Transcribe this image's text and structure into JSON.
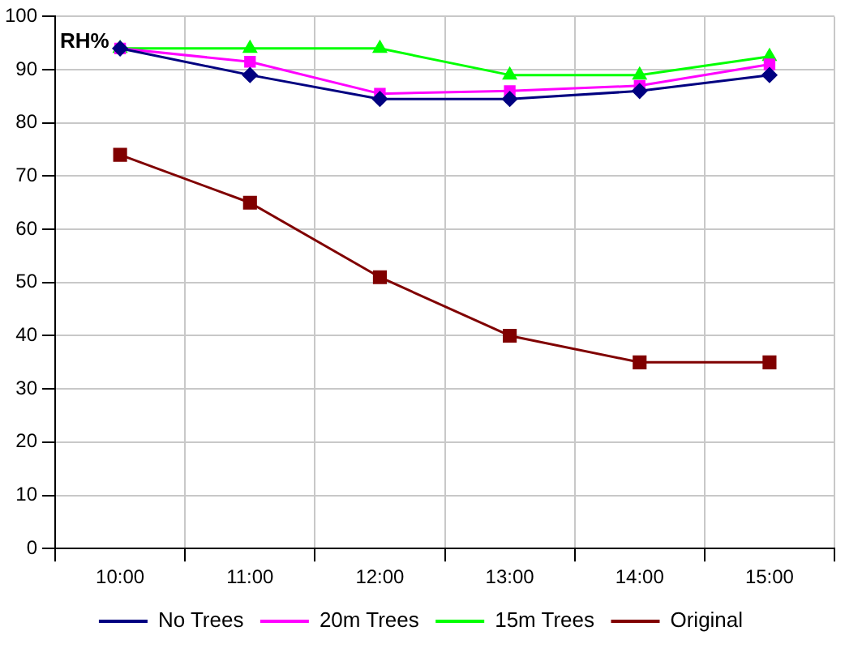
{
  "chart_data": {
    "type": "line",
    "ylabel": "RH%",
    "categories": [
      "10:00",
      "11:00",
      "12:00",
      "13:00",
      "14:00",
      "15:00"
    ],
    "series": [
      {
        "name": "No Trees",
        "color": "#000080",
        "marker": "diamond",
        "values": [
          94,
          89,
          84.5,
          84.5,
          86,
          89
        ]
      },
      {
        "name": "20m Trees",
        "color": "#ff00ff",
        "marker": "square",
        "values": [
          94,
          91.5,
          85.5,
          86,
          87,
          91
        ]
      },
      {
        "name": "15m Trees",
        "color": "#00ff00",
        "marker": "triangle",
        "values": [
          94,
          94,
          94,
          89,
          89,
          92.5
        ]
      },
      {
        "name": "Original",
        "color": "#800000",
        "marker": "square",
        "values": [
          74,
          65,
          51,
          40,
          35,
          35
        ]
      }
    ],
    "ylim": [
      0,
      100
    ],
    "yticks": [
      0,
      10,
      20,
      30,
      40,
      50,
      60,
      70,
      80,
      90,
      100
    ],
    "grid": true,
    "legend": "bottom"
  }
}
